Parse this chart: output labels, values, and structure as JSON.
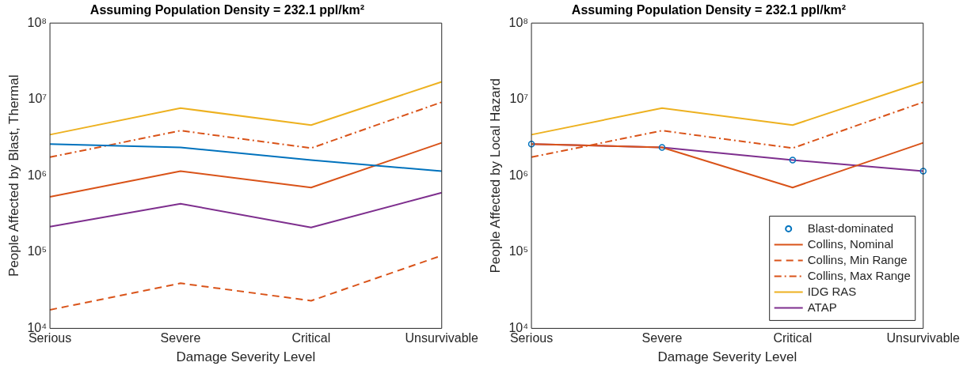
{
  "chart_data": [
    {
      "type": "line",
      "title": "Assuming Population Density = 232.1 ppl/km²",
      "xlabel": "Damage Severity Level",
      "ylabel": "People Affected by Blast, Thermal",
      "categories": [
        "Serious",
        "Severe",
        "Critical",
        "Unsurvivable"
      ],
      "log": "y",
      "ylim": [
        10000,
        100000000
      ],
      "yticks": [
        {
          "value": 10000,
          "label": "10⁴"
        },
        {
          "value": 100000,
          "label": "10⁵"
        },
        {
          "value": 1000000,
          "label": "10⁶"
        },
        {
          "value": 10000000,
          "label": "10⁷"
        },
        {
          "value": 100000000,
          "label": "10⁸"
        }
      ],
      "grid": false,
      "legend": false,
      "series": [
        {
          "color": "#0072bd",
          "values": [
            2600000,
            2350000,
            1600000,
            1150000
          ],
          "line_style": "solid"
        },
        {
          "color": "#d95319",
          "values": [
            530000,
            1150000,
            700000,
            2700000
          ],
          "line_style": "solid"
        },
        {
          "color": "#d95319",
          "values": [
            17500,
            39000,
            23000,
            90000
          ],
          "line_style": "dashed"
        },
        {
          "color": "#d95319",
          "values": [
            1750000,
            3900000,
            2300000,
            9200000
          ],
          "line_style": "dashdot"
        },
        {
          "color": "#edb120",
          "values": [
            3450000,
            7700000,
            4600000,
            17000000
          ],
          "line_style": "solid"
        },
        {
          "color": "#7e2f8e",
          "values": [
            215000,
            430000,
            210000,
            600000
          ],
          "line_style": "solid"
        }
      ]
    },
    {
      "type": "line",
      "title": "Assuming Population Density = 232.1 ppl/km²",
      "xlabel": "Damage Severity Level",
      "ylabel": "People Affected by Local Hazard",
      "categories": [
        "Serious",
        "Severe",
        "Critical",
        "Unsurvivable"
      ],
      "log": "y",
      "ylim": [
        10000,
        100000000
      ],
      "yticks": [
        {
          "value": 10000,
          "label": "10⁴"
        },
        {
          "value": 100000,
          "label": "10⁵"
        },
        {
          "value": 1000000,
          "label": "10⁶"
        },
        {
          "value": 10000000,
          "label": "10⁷"
        },
        {
          "value": 100000000,
          "label": "10⁸"
        }
      ],
      "grid": false,
      "legend": "bottom right",
      "series": [
        {
          "name": "Blast-dominated",
          "type": "scatter",
          "marker": "circle",
          "color": "#0072bd",
          "values": [
            2600000,
            2350000,
            1600000,
            1150000
          ]
        },
        {
          "name": "Collins, Nominal",
          "color": "#d95319",
          "values": [
            2600000,
            2350000,
            700000,
            2700000
          ],
          "line_style": "solid"
        },
        {
          "name": "Collins, Min Range",
          "color": "#d95319",
          "values": [
            null,
            null,
            null,
            null
          ],
          "line_style": "dashed"
        },
        {
          "name": "Collins, Max Range",
          "color": "#d95319",
          "values": [
            1750000,
            3900000,
            2300000,
            9200000
          ],
          "line_style": "dashdot"
        },
        {
          "name": "IDG RAS",
          "color": "#edb120",
          "values": [
            3450000,
            7700000,
            4600000,
            17000000
          ],
          "line_style": "solid"
        },
        {
          "name": "ATAP",
          "color": "#7e2f8e",
          "values": [
            2600000,
            2350000,
            1600000,
            1150000
          ],
          "line_style": "solid"
        }
      ]
    }
  ]
}
